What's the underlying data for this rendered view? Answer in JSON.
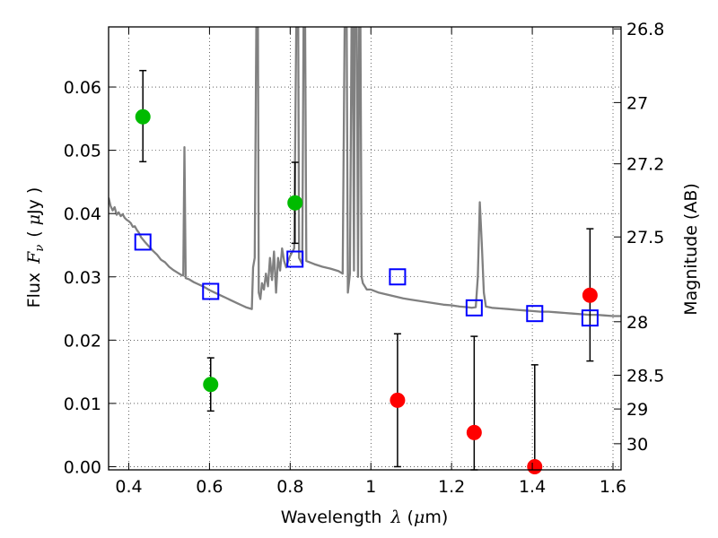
{
  "chart_data": {
    "type": "scatter",
    "xlabel": {
      "text": "Wavelength",
      "symbol": "λ",
      "unit_open": " (",
      "unit_mu": "μ",
      "unit_rest": "m)"
    },
    "ylabel": {
      "text": "Flux",
      "symbol": "F",
      "sub": "ν",
      "unit_open": "( ",
      "unit_mu": "μ",
      "unit_rest": "Jy )"
    },
    "y2label": "Magnitude (AB)",
    "xlim": [
      0.35,
      1.62
    ],
    "ylim": [
      -0.0005,
      0.0695
    ],
    "xticks": [
      0.4,
      0.6,
      0.8,
      1.0,
      1.2,
      1.4,
      1.6
    ],
    "xtick_labels": [
      "0.4",
      "0.6",
      "0.8",
      "1",
      "1.2",
      "1.4",
      "1.6"
    ],
    "yticks": [
      0.0,
      0.01,
      0.02,
      0.03,
      0.04,
      0.05,
      0.06
    ],
    "ytick_labels": [
      "0.00",
      "0.01",
      "0.02",
      "0.03",
      "0.04",
      "0.05",
      "0.06"
    ],
    "y2_ticks": [
      "26.8",
      "27",
      "27.2",
      "27.5",
      "28",
      "28.5",
      "29",
      "30"
    ],
    "grid": true,
    "colors": {
      "model": "#808080",
      "detection": "#00bb00",
      "upper_limit": "#ff0000",
      "model_photometry": "#0000ff",
      "errorbar": "#000000"
    },
    "model_spectrum": [
      [
        0.35,
        0.0425
      ],
      [
        0.355,
        0.0412
      ],
      [
        0.36,
        0.0405
      ],
      [
        0.365,
        0.041
      ],
      [
        0.37,
        0.0398
      ],
      [
        0.375,
        0.0402
      ],
      [
        0.38,
        0.0396
      ],
      [
        0.385,
        0.0399
      ],
      [
        0.39,
        0.0393
      ],
      [
        0.395,
        0.039
      ],
      [
        0.4,
        0.0388
      ],
      [
        0.405,
        0.0385
      ],
      [
        0.41,
        0.0379
      ],
      [
        0.415,
        0.038
      ],
      [
        0.42,
        0.0374
      ],
      [
        0.425,
        0.037
      ],
      [
        0.43,
        0.0363
      ],
      [
        0.435,
        0.0359
      ],
      [
        0.44,
        0.0355
      ],
      [
        0.45,
        0.0348
      ],
      [
        0.46,
        0.0341
      ],
      [
        0.47,
        0.0335
      ],
      [
        0.48,
        0.0327
      ],
      [
        0.49,
        0.0323
      ],
      [
        0.5,
        0.0316
      ],
      [
        0.51,
        0.0311
      ],
      [
        0.52,
        0.0307
      ],
      [
        0.53,
        0.0303
      ],
      [
        0.535,
        0.0302
      ],
      [
        0.538,
        0.0505
      ],
      [
        0.541,
        0.0298
      ],
      [
        0.55,
        0.0296
      ],
      [
        0.56,
        0.0292
      ],
      [
        0.57,
        0.0289
      ],
      [
        0.58,
        0.0286
      ],
      [
        0.59,
        0.0283
      ],
      [
        0.6,
        0.0279
      ],
      [
        0.61,
        0.0276
      ],
      [
        0.62,
        0.0273
      ],
      [
        0.63,
        0.027
      ],
      [
        0.64,
        0.0267
      ],
      [
        0.65,
        0.0264
      ],
      [
        0.66,
        0.0261
      ],
      [
        0.67,
        0.0258
      ],
      [
        0.68,
        0.0255
      ],
      [
        0.69,
        0.0252
      ],
      [
        0.7,
        0.025
      ],
      [
        0.705,
        0.0249
      ],
      [
        0.708,
        0.0315
      ],
      [
        0.712,
        0.033
      ],
      [
        0.716,
        0.0695
      ],
      [
        0.72,
        0.0695
      ],
      [
        0.722,
        0.0275
      ],
      [
        0.726,
        0.0265
      ],
      [
        0.73,
        0.029
      ],
      [
        0.735,
        0.028
      ],
      [
        0.74,
        0.0305
      ],
      [
        0.745,
        0.0285
      ],
      [
        0.75,
        0.033
      ],
      [
        0.755,
        0.0295
      ],
      [
        0.76,
        0.034
      ],
      [
        0.765,
        0.0275
      ],
      [
        0.77,
        0.033
      ],
      [
        0.775,
        0.031
      ],
      [
        0.78,
        0.0345
      ],
      [
        0.785,
        0.0325
      ],
      [
        0.79,
        0.0315
      ],
      [
        0.795,
        0.0325
      ],
      [
        0.8,
        0.0333
      ],
      [
        0.81,
        0.0345
      ],
      [
        0.815,
        0.0695
      ],
      [
        0.82,
        0.0695
      ],
      [
        0.822,
        0.033
      ],
      [
        0.83,
        0.032
      ],
      [
        0.833,
        0.0695
      ],
      [
        0.837,
        0.0695
      ],
      [
        0.84,
        0.0325
      ],
      [
        0.86,
        0.032
      ],
      [
        0.88,
        0.0316
      ],
      [
        0.9,
        0.0313
      ],
      [
        0.92,
        0.0309
      ],
      [
        0.93,
        0.0305
      ],
      [
        0.935,
        0.0695
      ],
      [
        0.94,
        0.0695
      ],
      [
        0.943,
        0.0275
      ],
      [
        0.948,
        0.0305
      ],
      [
        0.952,
        0.0695
      ],
      [
        0.955,
        0.0695
      ],
      [
        0.958,
        0.031
      ],
      [
        0.96,
        0.0695
      ],
      [
        0.965,
        0.0695
      ],
      [
        0.968,
        0.03
      ],
      [
        0.971,
        0.0695
      ],
      [
        0.974,
        0.0695
      ],
      [
        0.977,
        0.03
      ],
      [
        0.98,
        0.029
      ],
      [
        0.99,
        0.028
      ],
      [
        1.0,
        0.028
      ],
      [
        1.02,
        0.0275
      ],
      [
        1.04,
        0.0272
      ],
      [
        1.06,
        0.0269
      ],
      [
        1.08,
        0.0266
      ],
      [
        1.1,
        0.0264
      ],
      [
        1.12,
        0.0262
      ],
      [
        1.14,
        0.026
      ],
      [
        1.16,
        0.0258
      ],
      [
        1.18,
        0.0256
      ],
      [
        1.2,
        0.0255
      ],
      [
        1.22,
        0.0253
      ],
      [
        1.24,
        0.0252
      ],
      [
        1.25,
        0.0251
      ],
      [
        1.26,
        0.0252
      ],
      [
        1.265,
        0.03
      ],
      [
        1.27,
        0.0418
      ],
      [
        1.275,
        0.035
      ],
      [
        1.28,
        0.0275
      ],
      [
        1.285,
        0.0253
      ],
      [
        1.3,
        0.0251
      ],
      [
        1.32,
        0.025
      ],
      [
        1.34,
        0.0249
      ],
      [
        1.36,
        0.0248
      ],
      [
        1.38,
        0.0247
      ],
      [
        1.4,
        0.0246
      ],
      [
        1.42,
        0.0245
      ],
      [
        1.44,
        0.0245
      ],
      [
        1.46,
        0.0244
      ],
      [
        1.48,
        0.0243
      ],
      [
        1.5,
        0.0242
      ],
      [
        1.52,
        0.0241
      ],
      [
        1.54,
        0.024
      ],
      [
        1.56,
        0.024
      ],
      [
        1.58,
        0.0239
      ],
      [
        1.6,
        0.0238
      ],
      [
        1.62,
        0.0238
      ]
    ],
    "detections": [
      {
        "x": 0.435,
        "y": 0.0553,
        "ylo": 0.0482,
        "yhi": 0.0626
      },
      {
        "x": 0.603,
        "y": 0.013,
        "ylo": 0.0088,
        "yhi": 0.0172
      },
      {
        "x": 0.812,
        "y": 0.0417,
        "ylo": 0.0353,
        "yhi": 0.0481
      }
    ],
    "upper_limits": [
      {
        "x": 1.066,
        "y": 0.0105,
        "ylo": 0.0,
        "yhi": 0.021
      },
      {
        "x": 1.256,
        "y": 0.0054,
        "ylo": -0.0005,
        "yhi": 0.0206
      },
      {
        "x": 1.406,
        "y": 0.0,
        "ylo": -0.0005,
        "yhi": 0.0161
      },
      {
        "x": 1.543,
        "y": 0.0271,
        "ylo": 0.0167,
        "yhi": 0.0376
      }
    ],
    "model_photometry": [
      {
        "x": 0.435,
        "y": 0.0355
      },
      {
        "x": 0.603,
        "y": 0.0277
      },
      {
        "x": 0.812,
        "y": 0.0328
      },
      {
        "x": 1.066,
        "y": 0.03
      },
      {
        "x": 1.256,
        "y": 0.0251
      },
      {
        "x": 1.406,
        "y": 0.0242
      },
      {
        "x": 1.543,
        "y": 0.0235
      }
    ]
  }
}
